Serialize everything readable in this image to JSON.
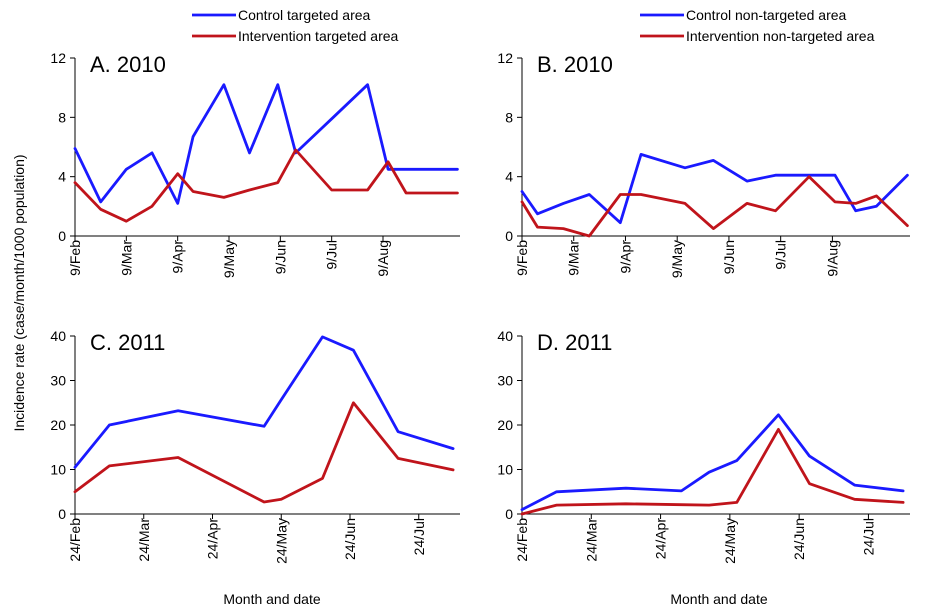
{
  "figure": {
    "ylabel": "Incidence rate (case/month/1000 population)",
    "xlabel": "Month and date"
  },
  "colors": {
    "control": "#1a1aff",
    "intervention": "#c0141b"
  },
  "chart_data": [
    {
      "type": "line",
      "panel_label": "A. 2010",
      "legend_placement": "top",
      "ylim": [
        0,
        12
      ],
      "yticks": [
        0,
        4,
        8,
        12
      ],
      "xlim": [
        0,
        7.5
      ],
      "xticks": [
        {
          "pos": 0,
          "label": "9/Feb"
        },
        {
          "pos": 1,
          "label": "9/Mar"
        },
        {
          "pos": 2,
          "label": "9/Apr"
        },
        {
          "pos": 3,
          "label": "9/May"
        },
        {
          "pos": 4,
          "label": "9/Jun"
        },
        {
          "pos": 5,
          "label": "9/Jul"
        },
        {
          "pos": 6,
          "label": "9/Aug"
        }
      ],
      "x": [
        0,
        0.5,
        1,
        1.5,
        2,
        2.3,
        2.9,
        3.4,
        3.95,
        4.3,
        5.0,
        5.7,
        6.1,
        6.45,
        7.45
      ],
      "series": [
        {
          "name": "Control targeted area",
          "color_key": "control",
          "values": [
            5.9,
            2.3,
            4.5,
            5.6,
            2.2,
            6.7,
            10.2,
            5.6,
            10.2,
            5.6,
            7.9,
            10.2,
            4.5,
            4.5,
            4.5
          ]
        },
        {
          "name": "Intervention targeted area",
          "color_key": "intervention",
          "values": [
            3.6,
            1.8,
            1.0,
            2.0,
            4.2,
            3.0,
            2.6,
            3.1,
            3.6,
            5.8,
            3.1,
            3.1,
            5.0,
            2.9,
            2.9
          ]
        }
      ]
    },
    {
      "type": "line",
      "panel_label": "B. 2010",
      "legend_placement": "top",
      "ylim": [
        0,
        12
      ],
      "yticks": [
        0,
        4,
        8,
        12
      ],
      "xlim": [
        0,
        7.5
      ],
      "xticks": [
        {
          "pos": 0,
          "label": "9/Feb"
        },
        {
          "pos": 1,
          "label": "9/Mar"
        },
        {
          "pos": 2,
          "label": "9/Apr"
        },
        {
          "pos": 3,
          "label": "9/May"
        },
        {
          "pos": 4,
          "label": "9/Jun"
        },
        {
          "pos": 5,
          "label": "9/Jul"
        },
        {
          "pos": 6,
          "label": "9/Aug"
        }
      ],
      "x": [
        0,
        0.3,
        0.8,
        1.3,
        1.9,
        2.3,
        3.15,
        3.7,
        4.35,
        4.9,
        5.55,
        6.05,
        6.45,
        6.85,
        7.45
      ],
      "series": [
        {
          "name": "Control non-targeted area",
          "color_key": "control",
          "values": [
            3.0,
            1.5,
            2.2,
            2.8,
            0.9,
            5.5,
            4.6,
            5.1,
            3.7,
            4.1,
            4.1,
            4.1,
            1.7,
            2.0,
            4.1
          ]
        },
        {
          "name": "Intervention non-targeted area",
          "color_key": "intervention",
          "values": [
            2.3,
            0.6,
            0.5,
            0.0,
            2.8,
            2.8,
            2.2,
            0.5,
            2.2,
            1.7,
            4.0,
            2.3,
            2.2,
            2.7,
            0.7
          ]
        }
      ]
    },
    {
      "type": "line",
      "panel_label": "C. 2011",
      "legend_placement": "none",
      "ylim": [
        0,
        40
      ],
      "yticks": [
        0,
        10,
        20,
        30,
        40
      ],
      "xlim": [
        0,
        5.6
      ],
      "xticks": [
        {
          "pos": 0,
          "label": "24/Feb"
        },
        {
          "pos": 1,
          "label": "24/Mar"
        },
        {
          "pos": 2,
          "label": "24/Apr"
        },
        {
          "pos": 3,
          "label": "24/May"
        },
        {
          "pos": 4,
          "label": "24/Jun"
        },
        {
          "pos": 5,
          "label": "24/Jul"
        }
      ],
      "x": [
        0,
        0.5,
        1.5,
        2.75,
        3.0,
        3.6,
        4.05,
        4.7,
        5.5
      ],
      "series": [
        {
          "name": "Control targeted area",
          "color_key": "control",
          "values": [
            10.5,
            20.0,
            23.2,
            19.7,
            25.7,
            39.8,
            36.8,
            18.5,
            14.7
          ]
        },
        {
          "name": "Intervention targeted area",
          "color_key": "intervention",
          "values": [
            5.0,
            10.8,
            12.7,
            2.7,
            3.3,
            8.0,
            25.0,
            12.5,
            9.9
          ]
        }
      ]
    },
    {
      "type": "line",
      "panel_label": "D. 2011",
      "legend_placement": "none",
      "ylim": [
        0,
        40
      ],
      "yticks": [
        0,
        10,
        20,
        30,
        40
      ],
      "xlim": [
        0,
        5.6
      ],
      "xticks": [
        {
          "pos": 0,
          "label": "24/Feb"
        },
        {
          "pos": 1,
          "label": "24/Mar"
        },
        {
          "pos": 2,
          "label": "24/Apr"
        },
        {
          "pos": 3,
          "label": "24/May"
        },
        {
          "pos": 4,
          "label": "24/Jun"
        },
        {
          "pos": 5,
          "label": "24/Jul"
        }
      ],
      "x": [
        0,
        0.5,
        1.5,
        2.3,
        2.7,
        3.1,
        3.7,
        4.15,
        4.8,
        5.5
      ],
      "series": [
        {
          "name": "Control non-targeted area",
          "color_key": "control",
          "values": [
            1.0,
            5.0,
            5.8,
            5.2,
            9.4,
            12.0,
            22.3,
            13.0,
            6.5,
            5.2
          ]
        },
        {
          "name": "Intervention non-targeted area",
          "color_key": "intervention",
          "values": [
            0.0,
            2.0,
            2.3,
            2.1,
            2.0,
            2.6,
            19.0,
            6.8,
            3.3,
            2.6
          ]
        }
      ]
    }
  ]
}
